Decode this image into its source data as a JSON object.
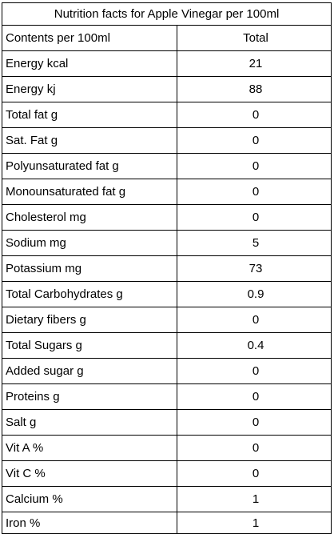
{
  "title": "Nutrition facts for Apple Vinegar per 100ml",
  "header": {
    "label": "Contents per 100ml",
    "total": "Total"
  },
  "rows": [
    {
      "label": "Energy kcal",
      "value": "21"
    },
    {
      "label": "Energy kj",
      "value": "88"
    },
    {
      "label": "Total fat g",
      "value": "0"
    },
    {
      "label": "Sat. Fat g",
      "value": "0"
    },
    {
      "label": "Polyunsaturated fat g",
      "value": "0"
    },
    {
      "label": "Monounsaturated fat g",
      "value": "0"
    },
    {
      "label": "Cholesterol mg",
      "value": "0"
    },
    {
      "label": "Sodium mg",
      "value": "5"
    },
    {
      "label": "Potassium mg",
      "value": "73"
    },
    {
      "label": "Total Carbohydrates g",
      "value": "0.9"
    },
    {
      "label": "Dietary fibers g",
      "value": "0"
    },
    {
      "label": "Total Sugars g",
      "value": "0.4"
    },
    {
      "label": "Added sugar g",
      "value": "0"
    },
    {
      "label": "Proteins g",
      "value": "0"
    },
    {
      "label": "Salt g",
      "value": "0"
    },
    {
      "label": "Vit A %",
      "value": "0"
    },
    {
      "label": "Vit C %",
      "value": "0"
    },
    {
      "label": "Calcium %",
      "value": "1"
    },
    {
      "label": "Iron %",
      "value": "1"
    }
  ]
}
